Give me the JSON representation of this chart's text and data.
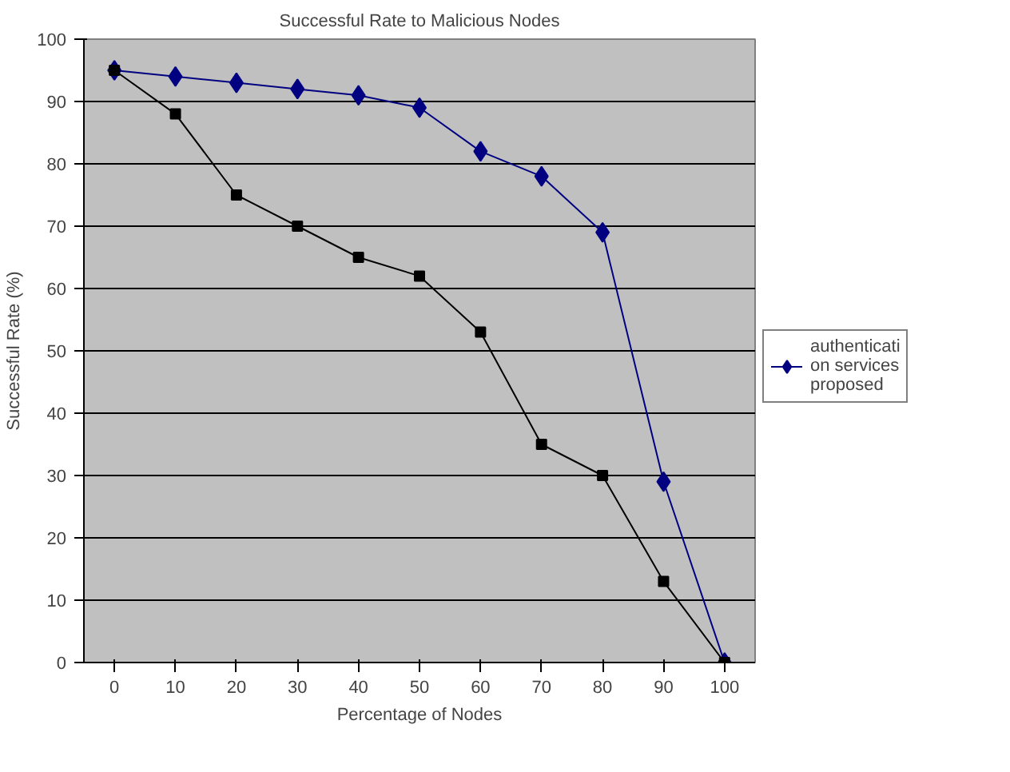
{
  "chart_data": {
    "type": "line",
    "title": "Successful Rate to Malicious Nodes",
    "xlabel": "Percentage of Nodes",
    "ylabel": "Successful Rate (%)",
    "categories": [
      "0",
      "10",
      "20",
      "30",
      "40",
      "50",
      "60",
      "70",
      "80",
      "90",
      "100"
    ],
    "series": [
      {
        "name": "authenticati on services proposed",
        "color": "#000080",
        "marker": "diamond",
        "values": [
          95,
          94,
          93,
          92,
          91,
          89,
          82,
          78,
          69,
          29,
          0
        ]
      },
      {
        "color": "#000000",
        "marker": "square",
        "values": [
          95,
          88,
          75,
          70,
          65,
          62,
          53,
          35,
          30,
          13,
          0
        ]
      }
    ],
    "ylim": [
      0,
      100
    ],
    "yticks": [
      0,
      10,
      20,
      30,
      40,
      50,
      60,
      70,
      80,
      90,
      100
    ],
    "grid": "y",
    "legend": "right",
    "line_style": "solid"
  }
}
